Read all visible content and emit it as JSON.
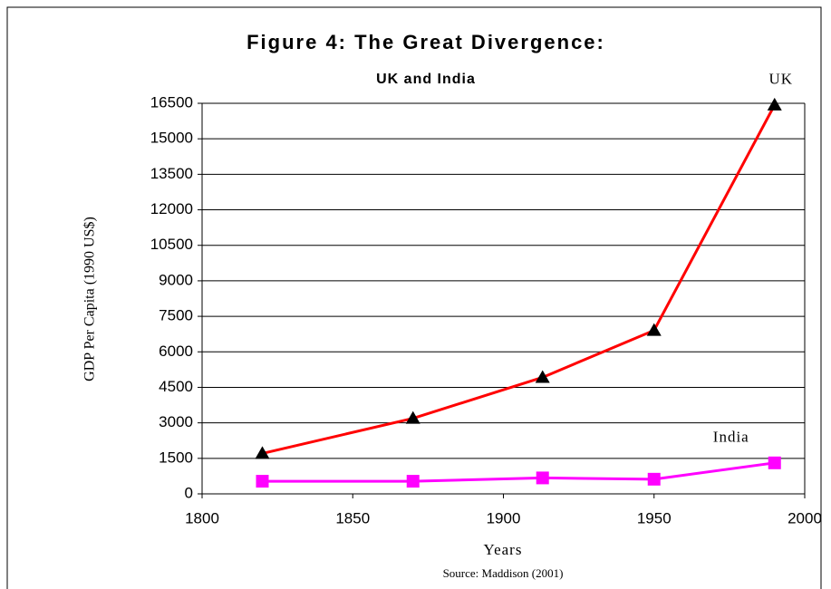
{
  "chart_data": {
    "type": "line",
    "title": "Figure 4:  The Great Divergence:",
    "subtitle": "UK and India",
    "x_label": "Years",
    "y_label": "GDP Per Capita (1990 US$)",
    "source": "Source: Maddison (2001)",
    "x": [
      1820,
      1870,
      1913,
      1950,
      1990
    ],
    "series": [
      {
        "name": "UK",
        "color": "#ff0000",
        "marker_color": "#000000",
        "marker": "triangle",
        "values": [
          1706,
          3190,
          4921,
          6907,
          16430
        ]
      },
      {
        "name": "India",
        "color": "#ff00ff",
        "marker_color": "#ff00ff",
        "marker": "square",
        "values": [
          533,
          533,
          673,
          619,
          1309
        ]
      }
    ],
    "xlim": [
      1800,
      2000
    ],
    "xticks": [
      1800,
      1850,
      1900,
      1950,
      2000
    ],
    "ylim": [
      0,
      16500
    ],
    "yticks": [
      0,
      1500,
      3000,
      4500,
      6000,
      7500,
      9000,
      10500,
      12000,
      13500,
      15000,
      16500
    ],
    "grid": true
  }
}
